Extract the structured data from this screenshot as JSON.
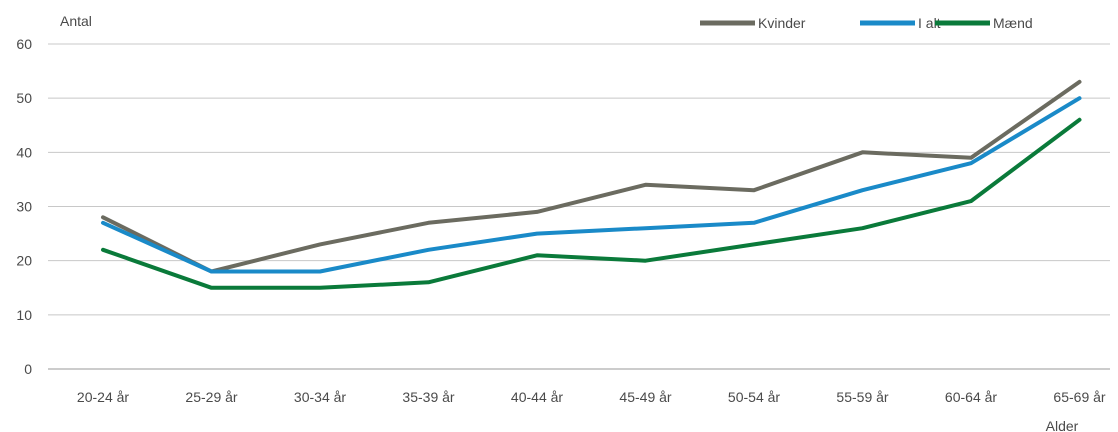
{
  "chart_data": {
    "type": "line",
    "ylabel": "Antal",
    "xlabel": "Alder",
    "ylim": [
      0,
      60
    ],
    "yticks": [
      0,
      10,
      20,
      30,
      40,
      50,
      60
    ],
    "grid": true,
    "legend_position": "top-right",
    "categories": [
      "20-24 år",
      "25-29 år",
      "30-34 år",
      "35-39 år",
      "40-44 år",
      "45-49 år",
      "50-54 år",
      "55-59 år",
      "60-64 år",
      "65-69 år"
    ],
    "series": [
      {
        "name": "Kvinder",
        "color": "#6b6b60",
        "values": [
          28,
          18,
          23,
          27,
          29,
          34,
          33,
          40,
          39,
          53
        ]
      },
      {
        "name": "I alt",
        "color": "#1a8ac8",
        "values": [
          27,
          18,
          18,
          22,
          25,
          26,
          27,
          33,
          38,
          50
        ]
      },
      {
        "name": "Mænd",
        "color": "#0a7a3a",
        "values": [
          22,
          15,
          15,
          16,
          21,
          20,
          23,
          26,
          31,
          46
        ]
      }
    ]
  }
}
